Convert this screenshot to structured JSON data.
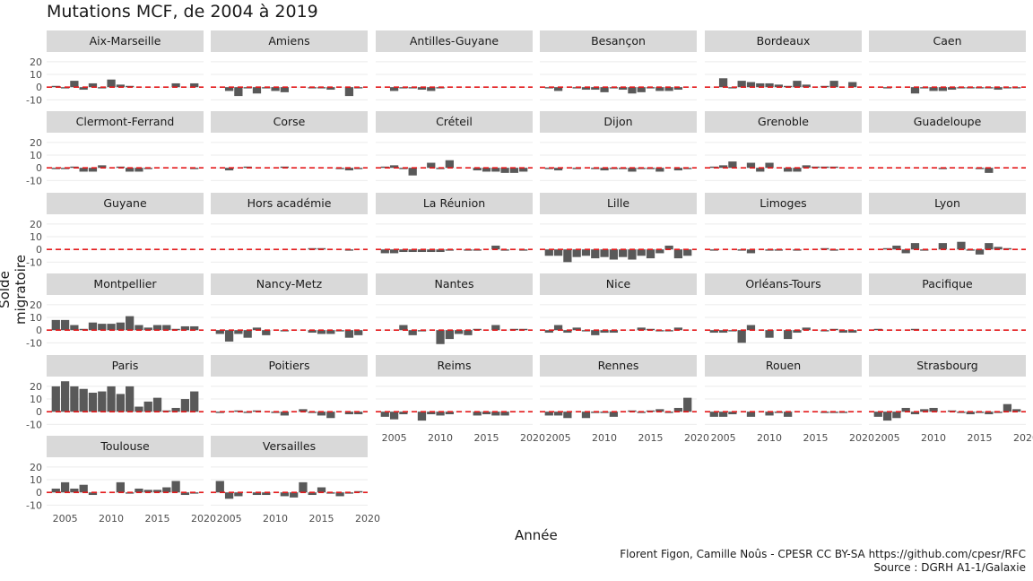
{
  "chart_data": {
    "type": "bar",
    "title": "Mutations MCF, de 2004 à 2019",
    "xlabel": "Année",
    "ylabel": "Solde migratoire",
    "x": [
      2004,
      2005,
      2006,
      2007,
      2008,
      2009,
      2010,
      2011,
      2012,
      2013,
      2014,
      2015,
      2016,
      2017,
      2018,
      2019
    ],
    "xlim": [
      2003,
      2020
    ],
    "ylim": [
      -14,
      27
    ],
    "xticks": [
      2005,
      2010,
      2015,
      2020
    ],
    "yticks": [
      20,
      10,
      0,
      -10
    ],
    "reference_line": {
      "y": 0,
      "style": "dashed",
      "color": "#e41a1c"
    },
    "bar_color": "#595959",
    "facets": [
      {
        "name": "Aix-Marseille",
        "values": [
          1,
          -1,
          5,
          -2,
          3,
          -1,
          6,
          2,
          1,
          0,
          0,
          0,
          0,
          3,
          0,
          3
        ]
      },
      {
        "name": "Amiens",
        "values": [
          0,
          -3,
          -7,
          -1,
          -5,
          -1,
          -3,
          -4,
          0,
          0,
          -1,
          -1,
          -2,
          0,
          -7,
          -1
        ]
      },
      {
        "name": "Antilles-Guyane",
        "values": [
          0,
          -3,
          -1,
          -1,
          -2,
          -3,
          -1,
          0,
          0,
          0,
          0,
          0,
          0,
          0,
          0,
          0
        ]
      },
      {
        "name": "Besançon",
        "values": [
          -1,
          -3,
          0,
          -1,
          -2,
          -2,
          -4,
          -1,
          -2,
          -5,
          -4,
          -1,
          -3,
          -3,
          -2,
          0
        ]
      },
      {
        "name": "Bordeaux",
        "values": [
          0,
          7,
          -1,
          5,
          4,
          3,
          3,
          2,
          1,
          5,
          2,
          0,
          1,
          5,
          0,
          4
        ]
      },
      {
        "name": "Caen",
        "values": [
          0,
          -1,
          0,
          0,
          -5,
          -1,
          -3,
          -3,
          -2,
          -1,
          -1,
          -1,
          -1,
          -2,
          -1,
          -1
        ]
      },
      {
        "name": "Clermont-Ferrand",
        "values": [
          -1,
          -1,
          1,
          -3,
          -3,
          2,
          0,
          1,
          -3,
          -3,
          -1,
          0,
          0,
          0,
          0,
          -1
        ]
      },
      {
        "name": "Corse",
        "values": [
          0,
          -2,
          0,
          1,
          0,
          0,
          0,
          1,
          0,
          0,
          0,
          0,
          0,
          -1,
          -2,
          -1
        ]
      },
      {
        "name": "Créteil",
        "values": [
          1,
          2,
          -1,
          -6,
          0,
          4,
          -1,
          6,
          0,
          0,
          -2,
          -3,
          -3,
          -4,
          -4,
          -3
        ]
      },
      {
        "name": "Dijon",
        "values": [
          -1,
          -2,
          0,
          -1,
          0,
          -1,
          -2,
          -1,
          -1,
          -3,
          -1,
          -1,
          -3,
          0,
          -2,
          -1
        ]
      },
      {
        "name": "Grenoble",
        "values": [
          1,
          2,
          5,
          0,
          4,
          -3,
          4,
          0,
          -3,
          -3,
          2,
          1,
          1,
          1,
          0,
          0
        ]
      },
      {
        "name": "Guadeloupe",
        "values": [
          0,
          0,
          0,
          0,
          0,
          0,
          0,
          -1,
          0,
          0,
          0,
          -1,
          -4,
          0,
          0,
          0
        ]
      },
      {
        "name": "Guyane",
        "values": [
          0,
          0,
          0,
          0,
          0,
          0,
          0,
          0,
          0,
          0,
          0,
          0,
          0,
          0,
          0,
          0
        ]
      },
      {
        "name": "Hors académie",
        "values": [
          0,
          0,
          0,
          0,
          0,
          0,
          0,
          0,
          0,
          0,
          1,
          1,
          0,
          0,
          -1,
          0
        ]
      },
      {
        "name": "La Réunion",
        "values": [
          -3,
          -3,
          -2,
          -2,
          -2,
          -2,
          -2,
          -1,
          0,
          -1,
          -1,
          0,
          3,
          -1,
          0,
          -1
        ]
      },
      {
        "name": "Lille",
        "values": [
          -5,
          -5,
          -10,
          -6,
          -5,
          -7,
          -6,
          -8,
          -6,
          -8,
          -5,
          -7,
          -3,
          3,
          -7,
          -5
        ]
      },
      {
        "name": "Limoges",
        "values": [
          -1,
          0,
          0,
          -1,
          -3,
          0,
          -1,
          -1,
          0,
          -1,
          0,
          0,
          1,
          -1,
          0,
          0
        ]
      },
      {
        "name": "Lyon",
        "values": [
          0,
          1,
          3,
          -3,
          5,
          -1,
          0,
          5,
          0,
          6,
          -1,
          -4,
          5,
          2,
          1,
          0
        ]
      },
      {
        "name": "Montpellier",
        "values": [
          8,
          8,
          4,
          1,
          6,
          5,
          5,
          6,
          11,
          4,
          2,
          4,
          4,
          1,
          3,
          3
        ]
      },
      {
        "name": "Nancy-Metz",
        "values": [
          -3,
          -9,
          -3,
          -6,
          2,
          -4,
          0,
          -1,
          0,
          0,
          -2,
          -3,
          -3,
          -1,
          -6,
          -4
        ]
      },
      {
        "name": "Nantes",
        "values": [
          0,
          0,
          4,
          -4,
          -1,
          0,
          -11,
          -7,
          -3,
          -4,
          1,
          0,
          4,
          0,
          1,
          1
        ]
      },
      {
        "name": "Nice",
        "values": [
          -2,
          4,
          -2,
          2,
          -1,
          -4,
          -2,
          -2,
          0,
          0,
          2,
          1,
          -1,
          -1,
          2,
          0
        ]
      },
      {
        "name": "Orléans-Tours",
        "values": [
          -2,
          -2,
          -1,
          -10,
          4,
          0,
          -6,
          0,
          -7,
          -2,
          2,
          0,
          -1,
          1,
          -2,
          -2
        ]
      },
      {
        "name": "Pacifique",
        "values": [
          1,
          0,
          0,
          0,
          1,
          0,
          0,
          0,
          0,
          0,
          0,
          0,
          0,
          0,
          0,
          0
        ]
      },
      {
        "name": "Paris",
        "values": [
          20,
          24,
          20,
          18,
          15,
          16,
          20,
          14,
          20,
          4,
          8,
          11,
          1,
          3,
          10,
          16
        ]
      },
      {
        "name": "Poitiers",
        "values": [
          -1,
          0,
          1,
          -1,
          1,
          0,
          -1,
          -3,
          0,
          2,
          -1,
          -3,
          -5,
          0,
          -2,
          -2
        ]
      },
      {
        "name": "Reims",
        "values": [
          -4,
          -6,
          -2,
          0,
          -7,
          -2,
          -3,
          -2,
          0,
          0,
          -3,
          -2,
          -3,
          -3,
          0,
          0
        ]
      },
      {
        "name": "Rennes",
        "values": [
          -3,
          -3,
          -5,
          0,
          -5,
          -1,
          -1,
          -4,
          0,
          1,
          -1,
          1,
          2,
          -1,
          3,
          11
        ]
      },
      {
        "name": "Rouen",
        "values": [
          -4,
          -4,
          -2,
          0,
          -4,
          0,
          -3,
          -1,
          -4,
          0,
          0,
          0,
          -1,
          -1,
          -1,
          0
        ]
      },
      {
        "name": "Strasbourg",
        "values": [
          -4,
          -7,
          -5,
          3,
          -2,
          2,
          3,
          0,
          1,
          -1,
          -2,
          -1,
          -2,
          -1,
          6,
          2
        ]
      },
      {
        "name": "Toulouse",
        "values": [
          3,
          8,
          3,
          6,
          -2,
          0,
          0,
          8,
          -1,
          3,
          2,
          2,
          4,
          9,
          -2,
          -1
        ]
      },
      {
        "name": "Versailles",
        "values": [
          9,
          -5,
          -3,
          0,
          -2,
          -2,
          0,
          -3,
          -4,
          8,
          -2,
          4,
          -1,
          -3,
          -1,
          1
        ]
      }
    ]
  },
  "caption": {
    "line1": "Florent Figon, Camille Noûs - CPESR CC BY-SA https://github.com/cpesr/RFC",
    "line2": "Source : DGRH A1-1/Galaxie"
  }
}
